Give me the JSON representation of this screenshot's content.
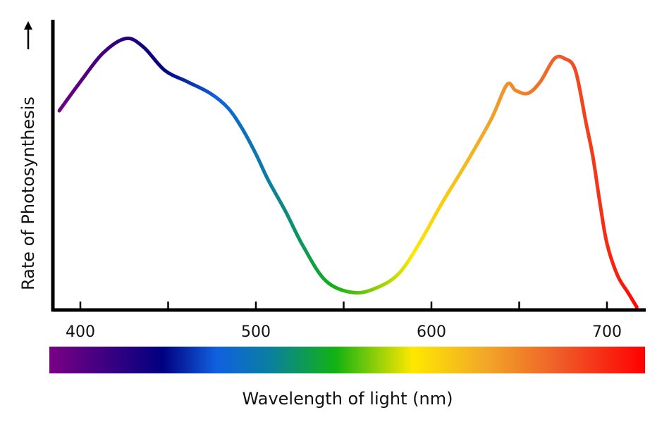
{
  "chart_data": {
    "type": "line",
    "title": "",
    "xlabel": "Wavelength of light (nm)",
    "ylabel": "Rate of Photosynthesis",
    "xlim": [
      383,
      723
    ],
    "ylim": [
      0,
      100
    ],
    "x_ticks": [
      400,
      450,
      500,
      550,
      600,
      650,
      700
    ],
    "x_tick_labels": [
      "400",
      "500",
      "600",
      "700"
    ],
    "x_tick_label_values": [
      400,
      500,
      600,
      700
    ],
    "y_ticks": [],
    "grid": false,
    "legend": "none",
    "series": [
      {
        "x": [
          388,
          400,
          413,
          426,
          436,
          448,
          461,
          474,
          484,
          492,
          500,
          507,
          517,
          527,
          540,
          556,
          570,
          582,
          594,
          606,
          620,
          634,
          643,
          648,
          655,
          662,
          670,
          676,
          682,
          688,
          692,
          696,
          700,
          706,
          712,
          717
        ],
        "y": [
          69,
          79,
          89,
          94,
          91,
          83,
          79,
          75,
          70,
          63,
          54,
          45,
          34,
          22,
          10,
          6,
          8,
          13,
          24,
          37,
          51,
          66,
          78,
          76,
          75,
          79,
          87,
          87,
          83,
          65,
          53,
          37,
          23,
          12,
          6,
          1
        ]
      }
    ],
    "spectrum_bar": {
      "stops": [
        {
          "at": 0.0,
          "color": "#7a0084"
        },
        {
          "at": 0.19,
          "color": "#000080"
        },
        {
          "at": 0.28,
          "color": "#1060e0"
        },
        {
          "at": 0.37,
          "color": "#0a7fa0"
        },
        {
          "at": 0.48,
          "color": "#12b212"
        },
        {
          "at": 0.61,
          "color": "#ffe800"
        },
        {
          "at": 0.73,
          "color": "#f2a828"
        },
        {
          "at": 0.86,
          "color": "#ef5a28"
        },
        {
          "at": 1.0,
          "color": "#ff0000"
        }
      ]
    },
    "y_axis_arrow": "up-arrow-icon"
  }
}
